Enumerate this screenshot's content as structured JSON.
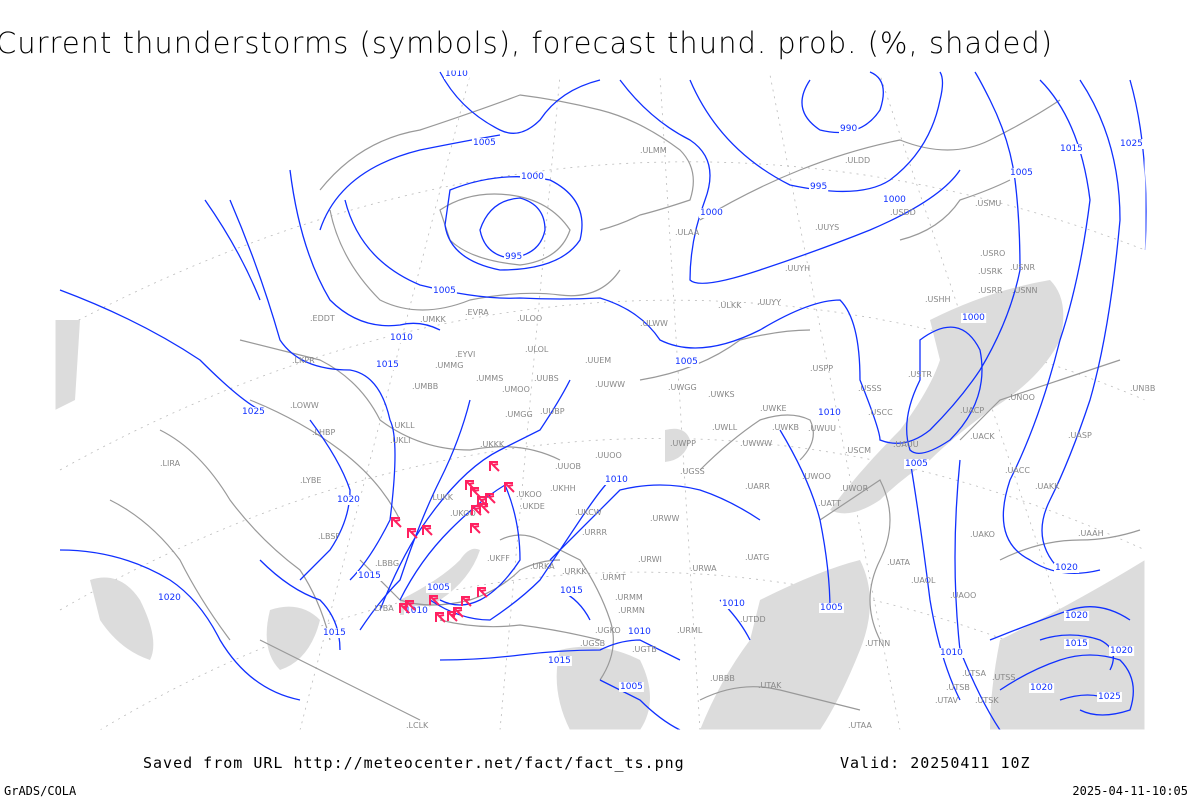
{
  "title": "Current thunderstorms (symbols), forecast thund. prob. (%, shaded)",
  "footer": {
    "saved_from": "Saved from URL http://meteocenter.net/fact/fact_ts.png",
    "valid": "Valid: 20250411 10Z",
    "software": "GrADS/COLA",
    "timestamp": "2025-04-11-10:05"
  },
  "colors": {
    "isobars": "#1030ff",
    "coastlines": "#999999",
    "thunderstorm_symbols": "#ff2060",
    "probability_shading": "#d8d8d8"
  },
  "legend": {
    "isobar_labels": [
      "1010",
      "1005",
      "1000",
      "995",
      "990",
      "995",
      "1000",
      "1000",
      "1005",
      "1010",
      "1015",
      "1025",
      "1005",
      "1000",
      "1005",
      "1015",
      "1025",
      "1010",
      "1005",
      "1010",
      "1020",
      "1015",
      "1020",
      "1005",
      "1010",
      "1015",
      "1015",
      "1010",
      "1010",
      "1005",
      "1015",
      "1010",
      "1020",
      "1020",
      "1015",
      "1020",
      "1020",
      "1025",
      "1005"
    ],
    "stations": [
      "ULMM",
      "ULDD",
      "USDD",
      "USMU",
      "ULAA",
      "UUYS",
      "UUYH",
      "USRO",
      "USRK",
      "USNR",
      "USRR",
      "USNN",
      "ULKK",
      "UUYY",
      "USHH",
      "ULWW",
      "EVRA",
      "ULOO",
      "EDDT",
      "UMKK",
      "ULOL",
      "UUEM",
      "EYVI",
      "UMMG",
      "UMMS",
      "UMOO",
      "UUBS",
      "UUWW",
      "UWGG",
      "UWKS",
      "USPP",
      "USSS",
      "UNBB",
      "USTR",
      "UNOO",
      "LKPR",
      "UMBB",
      "LOWW",
      "UMGG",
      "UUBP",
      "UWKE",
      "UWLL",
      "UWKB",
      "UWUU",
      "USCC",
      "UACP",
      "UACK",
      "UASP",
      "UKLL",
      "UKLI",
      "LHBP",
      "UKKK",
      "UWPP",
      "UWWW",
      "USCM",
      "UAUU",
      "UUOO",
      "UUOB",
      "LIRA",
      "UGSS",
      "UKHH",
      "UKOO",
      "UARR",
      "UWOO",
      "UWOR",
      "UACC",
      "UAKK",
      "LYBE",
      "LUKK",
      "UKDE",
      "UATT",
      "URWW",
      "UKCW",
      "UKOO",
      "LBSF",
      "URRR",
      "UAKO",
      "UAAH",
      "LBBG",
      "URWI",
      "UKFF",
      "URKA",
      "URKK",
      "UATG",
      "UATA",
      "URMT",
      "URWA",
      "UAOL",
      "UAOO",
      "LTBA",
      "URMM",
      "URMN",
      "UTDD",
      "UGKO",
      "URML",
      "UGTB",
      "UGSB",
      "UTNN",
      "UBBB",
      "UTAK",
      "UTSS",
      "UTSA",
      "UTSB",
      "UTAV",
      "UTSK",
      "LCLK",
      "UTAA"
    ]
  }
}
